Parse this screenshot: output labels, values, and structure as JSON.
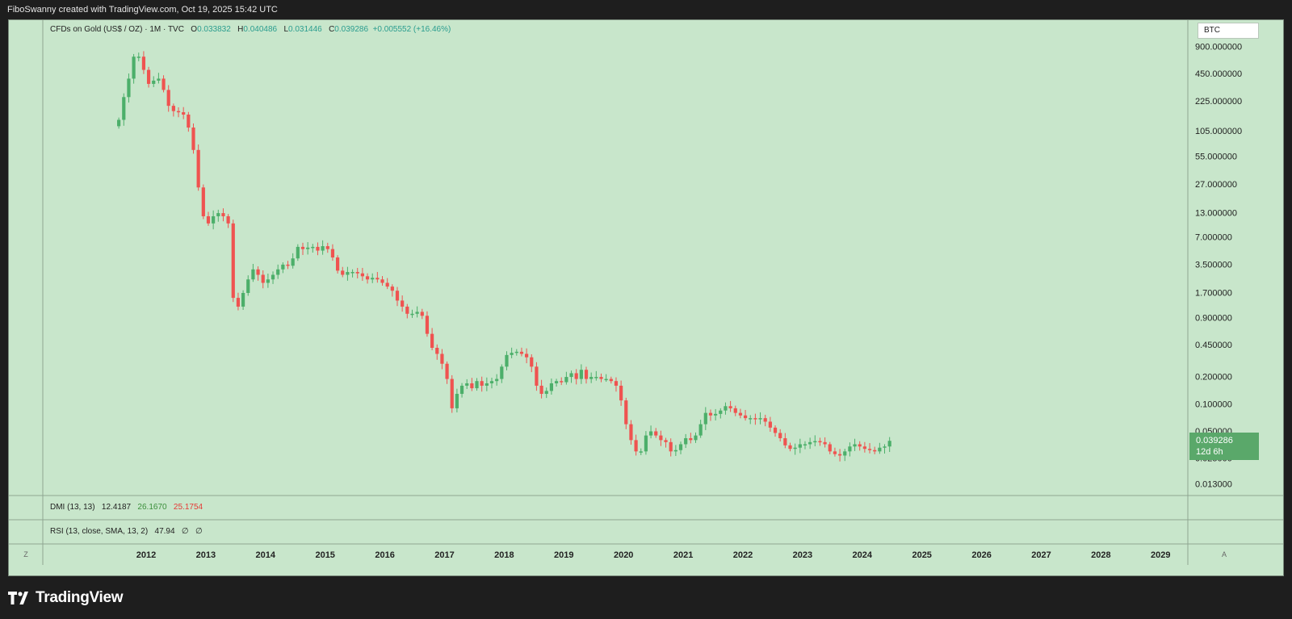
{
  "topbar": {
    "credit": "FiboSwanny created with TradingView.com, Oct 19, 2025 15:42 UTC"
  },
  "header": {
    "symbol": "CFDs on Gold (US$ / OZ) · 1M · TVC",
    "o_label": "O",
    "o_value": "0.033832",
    "h_label": "H",
    "h_value": "0.040486",
    "l_label": "L",
    "l_value": "0.031446",
    "c_label": "C",
    "c_value": "0.039286",
    "change": "+0.005552 (+16.46%)"
  },
  "currency_box": "BTC",
  "price_tag": {
    "value": "0.039286",
    "countdown": "12d 6h"
  },
  "dmi": {
    "label": "DMI (13, 13)",
    "adx": "12.4187",
    "plus_di": "26.1670",
    "minus_di": "25.1754"
  },
  "rsi": {
    "label": "RSI (13, close, SMA, 13, 2)",
    "value": "47.94",
    "na1": "∅",
    "na2": "∅"
  },
  "corners": {
    "left": "Z",
    "right": "A"
  },
  "brand": "TradingView",
  "colors": {
    "background": "#c8e6cb",
    "up": "#4caf6a",
    "down": "#ef5350",
    "tag": "#5aa86a"
  },
  "chart_data": {
    "type": "candlestick",
    "scale": "log",
    "y_ticks": [
      "900.000000",
      "450.000000",
      "225.000000",
      "105.000000",
      "55.000000",
      "27.000000",
      "13.000000",
      "7.000000",
      "3.500000",
      "1.700000",
      "0.900000",
      "0.450000",
      "0.200000",
      "0.100000",
      "0.050000",
      "0.025000",
      "0.013000"
    ],
    "x_ticks": [
      "2012",
      "2013",
      "2014",
      "2015",
      "2016",
      "2017",
      "2018",
      "2019",
      "2020",
      "2021",
      "2022",
      "2023",
      "2024",
      "2025",
      "2026",
      "2027",
      "2028",
      "2029"
    ],
    "x_start": 2011.5,
    "closes": [
      140,
      250,
      400,
      700,
      700,
      500,
      350,
      380,
      400,
      300,
      200,
      175,
      170,
      160,
      115,
      65,
      25,
      12,
      10,
      12,
      13,
      12,
      10,
      1.5,
      1.2,
      1.7,
      2.4,
      3.1,
      2.7,
      2.2,
      2.4,
      2.7,
      3.1,
      3.5,
      3.4,
      4.1,
      5.5,
      5.2,
      5.4,
      5.5,
      5.0,
      5.6,
      5.2,
      4.2,
      3.0,
      2.7,
      2.9,
      2.9,
      2.8,
      2.6,
      2.4,
      2.5,
      2.4,
      2.2,
      2.0,
      1.8,
      1.4,
      1.2,
      1.0,
      1.0,
      1.05,
      0.95,
      0.6,
      0.42,
      0.36,
      0.28,
      0.19,
      0.09,
      0.13,
      0.16,
      0.17,
      0.15,
      0.18,
      0.16,
      0.17,
      0.18,
      0.19,
      0.26,
      0.35,
      0.37,
      0.38,
      0.36,
      0.33,
      0.26,
      0.16,
      0.13,
      0.14,
      0.17,
      0.18,
      0.175,
      0.2,
      0.22,
      0.19,
      0.24,
      0.19,
      0.2,
      0.2,
      0.19,
      0.19,
      0.18,
      0.16,
      0.11,
      0.06,
      0.04,
      0.03,
      0.03,
      0.045,
      0.05,
      0.045,
      0.04,
      0.038,
      0.03,
      0.031,
      0.036,
      0.042,
      0.04,
      0.045,
      0.06,
      0.08,
      0.075,
      0.078,
      0.085,
      0.095,
      0.09,
      0.08,
      0.075,
      0.07,
      0.07,
      0.068,
      0.07,
      0.064,
      0.055,
      0.048,
      0.042,
      0.035,
      0.032,
      0.033,
      0.036,
      0.036,
      0.038,
      0.039,
      0.038,
      0.036,
      0.03,
      0.028,
      0.027,
      0.03,
      0.034,
      0.036,
      0.034,
      0.032,
      0.031,
      0.03,
      0.033,
      0.034,
      0.039286
    ]
  }
}
